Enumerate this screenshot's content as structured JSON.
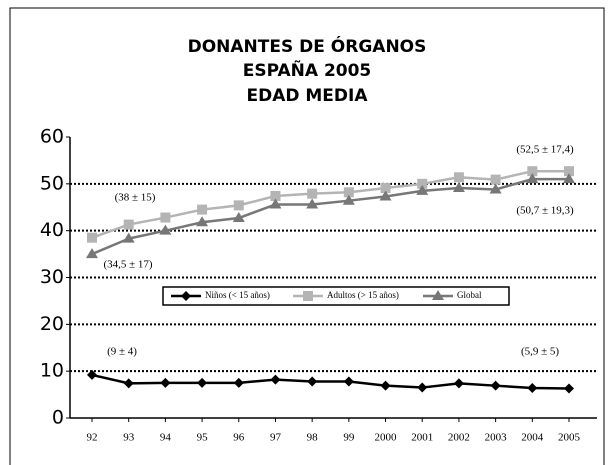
{
  "chart_data": {
    "type": "line",
    "title": [
      "DONANTES DE ÓRGANOS",
      "ESPAÑA 2005",
      "EDAD MEDIA"
    ],
    "categories": [
      "92",
      "93",
      "94",
      "95",
      "96",
      "97",
      "98",
      "99",
      "2000",
      "2001",
      "2002",
      "2003",
      "2004",
      "2005"
    ],
    "series": [
      {
        "name": "Niños (< 15 años)",
        "color": "#000000",
        "marker": "diamond",
        "values": [
          9.2,
          7.4,
          7.5,
          7.5,
          7.5,
          8.2,
          7.8,
          7.8,
          6.9,
          6.5,
          7.4,
          6.9,
          6.4,
          6.3
        ]
      },
      {
        "name": "Adultos (> 15 años)",
        "color": "#b4b4b4",
        "marker": "square",
        "values": [
          38.5,
          41.3,
          42.8,
          44.5,
          45.4,
          47.4,
          47.9,
          48.2,
          49.1,
          50.0,
          51.4,
          50.9,
          52.7,
          52.7
        ]
      },
      {
        "name": "Global",
        "color": "#777777",
        "marker": "triangle",
        "values": [
          35.0,
          38.3,
          40.0,
          41.8,
          42.7,
          45.6,
          45.6,
          46.4,
          47.3,
          48.5,
          49.1,
          48.8,
          51.0,
          51.0
        ]
      }
    ],
    "annotations": [
      "(38 ± 15)",
      "(34,5 ± 17)",
      "(9 ± 4)",
      "(52,5 ± 17,4)",
      "(50,7 ± 19,3)",
      "(5,9 ± 5)"
    ],
    "ylim": [
      0,
      60
    ],
    "yticks": [
      0,
      10,
      20,
      30,
      40,
      50,
      60
    ],
    "grid": true,
    "legend": "center"
  }
}
